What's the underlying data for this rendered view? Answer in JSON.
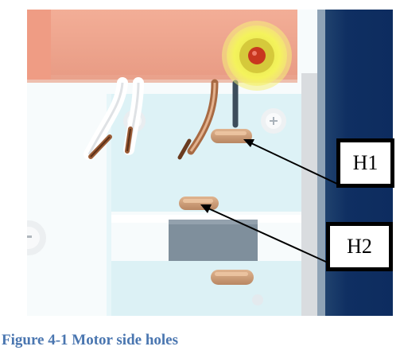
{
  "figure": {
    "caption": "Figure 4-1 Motor side holes",
    "callouts": [
      {
        "id": "h1",
        "label": "H1"
      },
      {
        "id": "h2",
        "label": "H2"
      }
    ]
  },
  "colors": {
    "caption": "#4a76b0",
    "motor_top": "#f0a890",
    "panel_light": "#dff3f7",
    "panel_blue_bar": "#0e2f66",
    "screw_yellow": "#f6f05a",
    "hole_tan": "#cc9a74"
  }
}
